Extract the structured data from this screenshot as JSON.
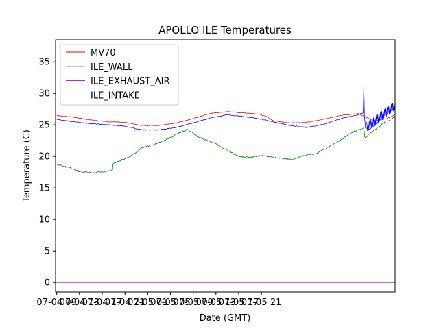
{
  "chart_data": {
    "type": "line",
    "title": "APOLLO ILE Temperatures",
    "xlabel": "Date (GMT)",
    "ylabel": "Temperature (C)",
    "ylim": [
      -1.5,
      38.5
    ],
    "xlim": [
      -0.2,
      59.5
    ],
    "x_unit": "hours since 07-04 09:00 GMT",
    "grid": false,
    "legend_position": "upper-left",
    "y_ticks": [
      {
        "value": 0,
        "label": "0"
      },
      {
        "value": 5,
        "label": "5"
      },
      {
        "value": 10,
        "label": "10"
      },
      {
        "value": 15,
        "label": "15"
      },
      {
        "value": 20,
        "label": "20"
      },
      {
        "value": 25,
        "label": "25"
      },
      {
        "value": 30,
        "label": "30"
      },
      {
        "value": 35,
        "label": "35"
      }
    ],
    "x_ticks": [
      {
        "value": 0,
        "label": "07-04 09"
      },
      {
        "value": 4,
        "label": "07-04 13"
      },
      {
        "value": 8,
        "label": "07-04 17"
      },
      {
        "value": 12,
        "label": "07-04 21"
      },
      {
        "value": 16,
        "label": "07-05 01"
      },
      {
        "value": 20,
        "label": "07-05 05"
      },
      {
        "value": 24,
        "label": "07-05 09"
      },
      {
        "value": 28,
        "label": "07-05 13"
      },
      {
        "value": 32,
        "label": "07-05 17"
      },
      {
        "value": 36,
        "label": "07-05 21"
      }
    ],
    "series": [
      {
        "name": "MV70",
        "color": "#ff0000",
        "x": [
          0,
          3,
          6,
          9,
          12,
          15,
          18,
          21,
          24,
          27,
          30,
          33,
          35.5,
          37,
          37.5,
          38,
          39,
          41,
          44,
          47,
          50,
          53,
          56,
          58,
          59.5
        ],
        "y": [
          26.5,
          26.2,
          25.8,
          25.5,
          25.4,
          24.9,
          24.9,
          25.3,
          26.0,
          26.8,
          27.1,
          26.9,
          26.7,
          26.3,
          26.0,
          25.7,
          25.5,
          25.3,
          25.4,
          25.9,
          26.5,
          26.8,
          25.6,
          26.0,
          26.6
        ]
      },
      {
        "name": "ILE_WALL",
        "color": "#0000ff",
        "x": [
          0,
          3,
          6,
          9,
          12,
          15,
          18,
          21,
          24,
          27,
          30,
          33,
          35.5,
          37,
          38,
          39,
          41,
          44,
          47,
          50,
          53,
          53.9,
          54.0,
          54.1,
          54.3,
          55,
          56,
          57,
          58,
          59,
          59.5
        ],
        "y": [
          25.9,
          25.5,
          25.2,
          25.0,
          24.8,
          24.2,
          24.2,
          24.6,
          25.3,
          26.1,
          26.6,
          26.3,
          26.0,
          25.7,
          25.5,
          25.3,
          24.9,
          24.6,
          25.1,
          26.0,
          26.6,
          26.9,
          31.4,
          26.5,
          24.5,
          24.3,
          25.0,
          26.0,
          26.8,
          27.4,
          27.8
        ]
      },
      {
        "name": "ILE_EXHAUST_AIR",
        "color": "#bf00bf",
        "x": [
          -0.2,
          59.5
        ],
        "y": [
          0.0,
          0.0
        ]
      },
      {
        "name": "ILE_INTAKE",
        "color": "#008000",
        "x": [
          0,
          2,
          4,
          6,
          8,
          9.8,
          9.9,
          11,
          13,
          15,
          17,
          19,
          21,
          23,
          25,
          27,
          29,
          30,
          30.8,
          32,
          34,
          36,
          38,
          40,
          41.5,
          41.6,
          43,
          46,
          49,
          52,
          54,
          54.2,
          56,
          58,
          59.5
        ],
        "y": [
          18.7,
          18.3,
          17.6,
          17.4,
          17.5,
          17.8,
          18.8,
          19.3,
          20.0,
          21.4,
          21.8,
          22.6,
          23.5,
          24.3,
          23.0,
          22.4,
          21.5,
          21.0,
          20.6,
          20.0,
          19.9,
          20.1,
          19.9,
          19.6,
          19.5,
          19.5,
          20.0,
          20.6,
          22.1,
          23.8,
          24.5,
          22.9,
          24.3,
          25.6,
          26.2
        ]
      }
    ]
  }
}
